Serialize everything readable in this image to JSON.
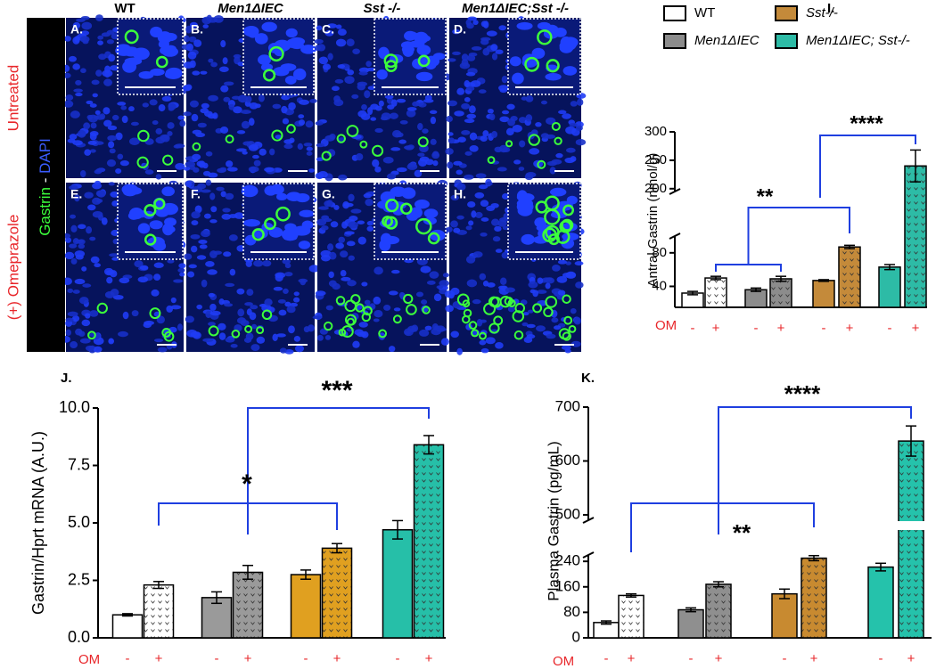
{
  "figure": {
    "columns": [
      "WT",
      "Men1ΔIEC",
      "Sst -/-",
      "Men1ΔIEC;Sst -/-"
    ],
    "rows": [
      "Untreated",
      "(+) Omeprazole"
    ],
    "stain": [
      "Gastrin",
      " - ",
      "DAPI"
    ],
    "panel_letters": [
      "A.",
      "B.",
      "C.",
      "D.",
      "E.",
      "F.",
      "G.",
      "H."
    ]
  },
  "chart_data": [
    {
      "type": "bar",
      "panel": "I.",
      "ylabel": "Antral Gastrin (nmol/g)",
      "x_label": "OM",
      "categories": [
        "-",
        "+"
      ],
      "legend": true,
      "series": [
        {
          "name": "WT",
          "color": "#ffffff",
          "values": [
            32,
            50
          ],
          "errors": [
            2,
            2
          ]
        },
        {
          "name": "Men1ΔIEC",
          "color": "#8c8c8c",
          "values": [
            36,
            49
          ],
          "errors": [
            2,
            3
          ]
        },
        {
          "name": "Sst-/-",
          "color": "#c48a3a",
          "values": [
            47,
            87
          ],
          "errors": [
            1,
            2
          ]
        },
        {
          "name": "Men1ΔIEC; Sst-/-",
          "color": "#2dbba6",
          "values": [
            63,
            240
          ],
          "errors": [
            3,
            28
          ]
        }
      ],
      "ylim": [
        15,
        300
      ],
      "ybreak": [
        100,
        195
      ],
      "yticks": [
        40,
        80,
        200,
        250,
        300
      ],
      "annotations": [
        "**",
        "****"
      ]
    },
    {
      "type": "bar",
      "panel": "J.",
      "ylabel": "Gastrin/Hprt mRNA (A.U.)",
      "x_label": "OM",
      "categories": [
        "-",
        "+"
      ],
      "legend": false,
      "series": [
        {
          "color": "#ffffff",
          "values": [
            1.0,
            2.3
          ],
          "errors": [
            0.05,
            0.15
          ]
        },
        {
          "color": "#9a9a9a",
          "values": [
            1.75,
            2.85
          ],
          "errors": [
            0.25,
            0.3
          ]
        },
        {
          "color": "#e0a020",
          "values": [
            2.75,
            3.9
          ],
          "errors": [
            0.2,
            0.2
          ]
        },
        {
          "color": "#26bfa8",
          "values": [
            4.7,
            8.4
          ],
          "errors": [
            0.4,
            0.4
          ]
        }
      ],
      "ylim": [
        0,
        10
      ],
      "yticks": [
        {
          "value": 0,
          "label": "0.0"
        },
        2.5,
        {
          "value": 5,
          "label": "5.0"
        },
        7.5,
        {
          "value": 10,
          "label": "10.0"
        }
      ],
      "annotations": [
        "*",
        "***"
      ]
    },
    {
      "type": "bar",
      "panel": "K.",
      "ylabel": "Plasma Gastrin (pg/mL)",
      "x_label": "OM",
      "categories": [
        "-",
        "+"
      ],
      "legend": false,
      "series": [
        {
          "color": "#ffffff",
          "values": [
            48,
            133
          ],
          "errors": [
            5,
            5
          ]
        },
        {
          "color": "#8f8f8f",
          "values": [
            88,
            168
          ],
          "errors": [
            6,
            8
          ]
        },
        {
          "color": "#c88a30",
          "values": [
            138,
            250
          ],
          "errors": [
            15,
            8
          ]
        },
        {
          "color": "#25c2ab",
          "values": [
            222,
            637
          ],
          "errors": [
            12,
            28
          ]
        }
      ],
      "ylim": [
        0,
        700
      ],
      "ybreak": [
        260,
        490
      ],
      "yticks": [
        0,
        80,
        160,
        240,
        500,
        600,
        700
      ],
      "annotations": [
        "**",
        "****"
      ]
    }
  ]
}
